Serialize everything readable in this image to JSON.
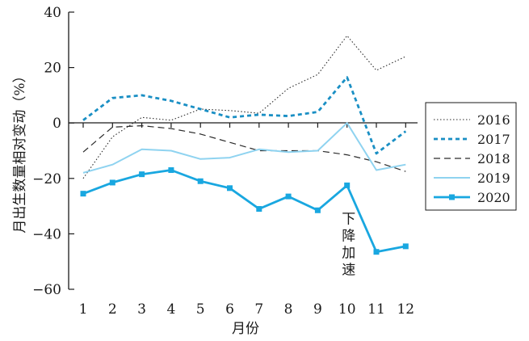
{
  "chart_data": {
    "type": "line",
    "xlabel": "月份",
    "ylabel": "月出生数量相对变动（%）",
    "x": [
      1,
      2,
      3,
      4,
      5,
      6,
      7,
      8,
      9,
      10,
      11,
      12
    ],
    "xlim": [
      1,
      12
    ],
    "ylim": [
      -60,
      40
    ],
    "yticks": [
      -60,
      -40,
      -20,
      0,
      20,
      40
    ],
    "yticks_display": [
      "−60",
      "−40",
      "−20",
      "0",
      "20",
      "40"
    ],
    "grid": false,
    "legend_position": "right",
    "series": [
      {
        "name": "2016",
        "style": "dotted",
        "color": "#2b2b2b",
        "marker": "none",
        "values": [
          -20,
          -5,
          2,
          1,
          5,
          4.5,
          3.5,
          12.5,
          17.5,
          31.5,
          19,
          24
        ]
      },
      {
        "name": "2017",
        "style": "dashed-bold",
        "color": "#1a8fc4",
        "marker": "none",
        "values": [
          1,
          9,
          10,
          8,
          5,
          2,
          3,
          2.5,
          4,
          16.5,
          -11,
          -3
        ]
      },
      {
        "name": "2018",
        "style": "dashed",
        "color": "#2b2b2b",
        "marker": "none",
        "values": [
          -10.5,
          -1.5,
          -1,
          -2,
          -4,
          -7,
          -10,
          -10,
          -10,
          -11.5,
          -14,
          -17.5
        ]
      },
      {
        "name": "2019",
        "style": "solid",
        "color": "#8fd3f0",
        "marker": "none",
        "values": [
          -18,
          -15,
          -9.5,
          -10,
          -13,
          -12.5,
          -9.5,
          -10.5,
          -10,
          0,
          -17,
          -15
        ]
      },
      {
        "name": "2020",
        "style": "solid-bold",
        "color": "#19a7e0",
        "marker": "square",
        "values": [
          -25.5,
          -21.5,
          -18.5,
          -17,
          -21,
          -23.5,
          -31,
          -26.5,
          -31.5,
          -22.5,
          -46.5,
          -44.5
        ]
      }
    ],
    "annotations": [
      {
        "text": "下降加速",
        "x": 10,
        "y": -38
      }
    ]
  }
}
